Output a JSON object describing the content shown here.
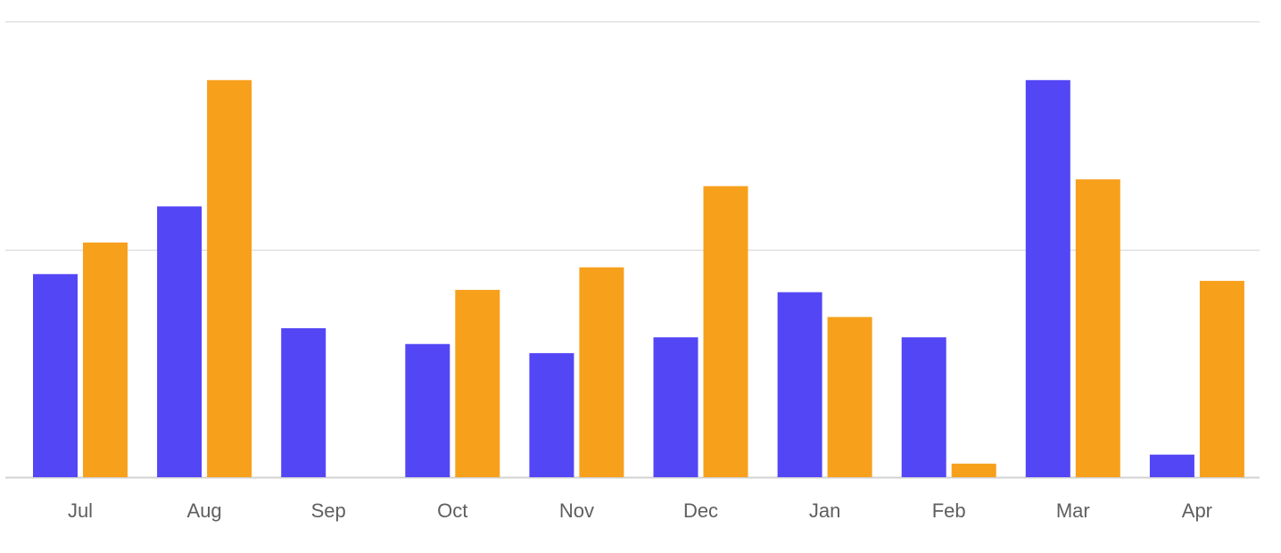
{
  "chart_data": {
    "type": "bar",
    "categories": [
      "Jul",
      "Aug",
      "Sep",
      "Oct",
      "Nov",
      "Dec",
      "Jan",
      "Feb",
      "Mar",
      "Apr"
    ],
    "series": [
      {
        "values": [
          45,
          60,
          33,
          29.5,
          27.5,
          31,
          41,
          31,
          88,
          5
        ],
        "color": "#5346F5"
      },
      {
        "values": [
          52,
          88,
          0,
          41.5,
          46.5,
          64.5,
          35.5,
          3,
          66,
          43.5
        ],
        "color": "#F7A01C"
      }
    ],
    "ylim": [
      0,
      101
    ],
    "gridlines": [
      0,
      50.5,
      101
    ],
    "grid": true,
    "title": "",
    "xlabel": "",
    "ylabel": "",
    "legend": "none",
    "colors": {
      "grid": "#dcdcdc",
      "baseline": "#d2d2d2",
      "tick_label": "#5f5f5f"
    }
  }
}
